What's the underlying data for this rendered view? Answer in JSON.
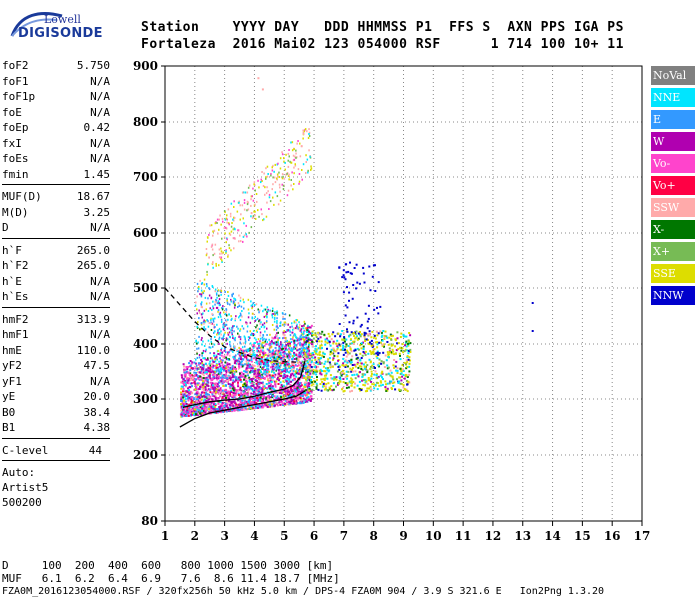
{
  "logo": {
    "top": "Lowell",
    "bottom": "DIGISONDE"
  },
  "header": {
    "line1": "Station    YYYY DAY   DDD HHMMSS P1  FFS S  AXN PPS IGA PS",
    "line2": "Fortaleza  2016 Mai02 123 054000 RSF      1 714 100 10+ 11"
  },
  "params_group1": [
    {
      "k": "foF2",
      "v": "5.750"
    },
    {
      "k": "foF1",
      "v": "N/A"
    },
    {
      "k": "foF1p",
      "v": "N/A"
    },
    {
      "k": "foE",
      "v": "N/A"
    },
    {
      "k": "foEp",
      "v": "0.42"
    },
    {
      "k": "fxI",
      "v": "N/A"
    },
    {
      "k": "foEs",
      "v": "N/A"
    },
    {
      "k": "fmin",
      "v": "1.45"
    }
  ],
  "params_group2": [
    {
      "k": "MUF(D)",
      "v": "18.67"
    },
    {
      "k": "M(D)",
      "v": "3.25"
    },
    {
      "k": "D",
      "v": "N/A"
    }
  ],
  "params_group3": [
    {
      "k": "h`F",
      "v": "265.0"
    },
    {
      "k": "h`F2",
      "v": "265.0"
    },
    {
      "k": "h`E",
      "v": "N/A"
    },
    {
      "k": "h`Es",
      "v": "N/A"
    }
  ],
  "params_group4": [
    {
      "k": "hmF2",
      "v": "313.9"
    },
    {
      "k": "hmF1",
      "v": "N/A"
    },
    {
      "k": "hmE",
      "v": "110.0"
    },
    {
      "k": "yF2",
      "v": "47.5"
    },
    {
      "k": "yF1",
      "v": "N/A"
    },
    {
      "k": "yE",
      "v": "20.0"
    },
    {
      "k": "B0",
      "v": "38.4"
    },
    {
      "k": "B1",
      "v": "4.38"
    }
  ],
  "clevel": {
    "k": "C-level",
    "v": "44"
  },
  "auto": [
    "Auto:",
    "Artist5",
    "500200"
  ],
  "legend": [
    {
      "label": "NoVal",
      "color": "#808080"
    },
    {
      "label": "NNE",
      "color": "#00e5ff"
    },
    {
      "label": "E",
      "color": "#3399ff"
    },
    {
      "label": "W",
      "color": "#b000b0"
    },
    {
      "label": "Vo-",
      "color": "#ff44cc"
    },
    {
      "label": "Vo+",
      "color": "#ff0044"
    },
    {
      "label": "SSW",
      "color": "#ffaaaa"
    },
    {
      "label": "X-",
      "color": "#007700"
    },
    {
      "label": "X+",
      "color": "#77bb55"
    },
    {
      "label": "SSE",
      "color": "#dddd00"
    },
    {
      "label": "NNW",
      "color": "#0000cc"
    }
  ],
  "bottom": {
    "d_row": "D     100  200  400  600   800 1000 1500 3000 [km]",
    "muf_row": "MUF   6.1  6.2  6.4  6.9   7.6  8.6 11.4 18.7 [MHz]",
    "footer": "FZA0M_2016123054000.RSF / 320fx256h 50 kHz 5.0 km / DPS-4 FZA0M 904 / 3.9 S 321.6 E   Ion2Png 1.3.20"
  },
  "chart_data": {
    "type": "scatter",
    "title": "",
    "xlabel": "",
    "ylabel": "",
    "xlim": [
      1,
      17
    ],
    "ylim": [
      80,
      900
    ],
    "x_ticks": [
      "1",
      "2",
      "3",
      "4",
      "5",
      "6",
      "7",
      "8",
      "9",
      "10",
      "11",
      "12",
      "13",
      "14",
      "15",
      "16",
      "17"
    ],
    "y_ticks": [
      "900",
      "800",
      "700",
      "600",
      "500",
      "400",
      "300",
      "200",
      "80"
    ],
    "grid": "dotted",
    "legend_position": "right",
    "traces": [
      {
        "name": "O-trace profile upper",
        "color": "#000000",
        "style": "solid",
        "x": [
          1.6,
          2.0,
          2.5,
          3.0,
          3.5,
          4.0,
          4.5,
          5.0,
          5.3,
          5.55,
          5.7
        ],
        "y": [
          285,
          290,
          295,
          298,
          300,
          305,
          312,
          318,
          325,
          340,
          370
        ]
      },
      {
        "name": "O-trace profile lower",
        "color": "#000000",
        "style": "solid",
        "x": [
          1.5,
          2.0,
          2.5,
          3.0,
          3.5,
          4.0,
          4.5,
          5.0,
          5.4,
          5.7
        ],
        "y": [
          250,
          265,
          275,
          280,
          285,
          290,
          295,
          300,
          305,
          315
        ]
      },
      {
        "name": "Profile extrapolation",
        "color": "#000000",
        "style": "dashed",
        "x": [
          1.0,
          1.5,
          2.0,
          2.5,
          3.0,
          3.5,
          4.0,
          4.5,
          5.0,
          5.4
        ],
        "y": [
          500,
          470,
          440,
          415,
          395,
          385,
          375,
          370,
          368,
          367
        ]
      }
    ],
    "clusters": [
      {
        "label": "F-layer echoes",
        "x_range": [
          1.5,
          5.9
        ],
        "y_range": [
          265,
          430
        ]
      },
      {
        "label": "multihop echoes",
        "x_range": [
          2.3,
          5.9
        ],
        "y_range": [
          560,
          820
        ]
      },
      {
        "label": "spread echoes",
        "x_range": [
          5.6,
          9.2
        ],
        "y_range": [
          310,
          420
        ]
      }
    ]
  }
}
